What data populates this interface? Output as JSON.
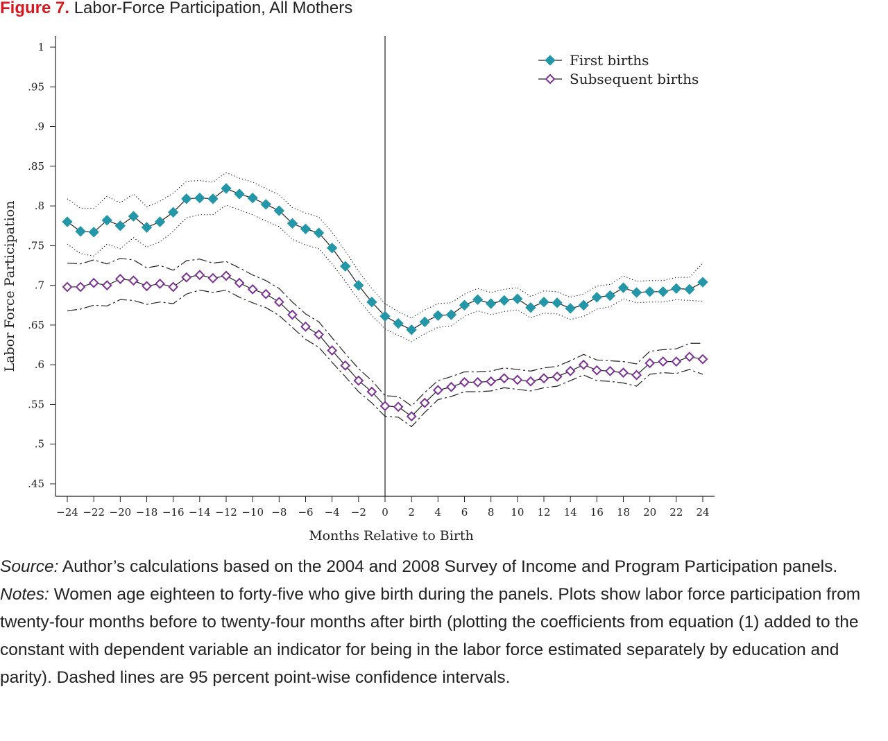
{
  "figure": {
    "label": "Figure 7.",
    "title": "Labor-Force Participation, All Mothers"
  },
  "chart_data": {
    "type": "line",
    "xlabel": "Months Relative to Birth",
    "ylabel": "Labor Force Participation",
    "xlim": [
      -24,
      24
    ],
    "ylim": [
      0.45,
      1
    ],
    "x_ticks": [
      -24,
      -22,
      -20,
      -18,
      -16,
      -14,
      -12,
      -10,
      -8,
      -6,
      -4,
      -2,
      0,
      2,
      4,
      6,
      8,
      10,
      12,
      14,
      16,
      18,
      20,
      22,
      24
    ],
    "x_tick_labels": [
      "−24",
      "−22",
      "−20",
      "−18",
      "−16",
      "−14",
      "−12",
      "−10",
      "−8",
      "−6",
      "−4",
      "−2",
      "0",
      "2",
      "4",
      "6",
      "8",
      "10",
      "12",
      "14",
      "16",
      "18",
      "20",
      "22",
      "24"
    ],
    "y_ticks": [
      0.45,
      0.5,
      0.55,
      0.6,
      0.65,
      0.7,
      0.75,
      0.8,
      0.85,
      0.9,
      0.95,
      1
    ],
    "y_tick_labels": [
      ".45",
      ".5",
      ".55",
      ".6",
      ".65",
      ".7",
      ".75",
      ".8",
      ".85",
      ".9",
      ".95",
      "1"
    ],
    "reference_line_x": 0,
    "grid": false,
    "legend_position": "top-right",
    "x": [
      -24,
      -23,
      -22,
      -21,
      -20,
      -19,
      -18,
      -17,
      -16,
      -15,
      -14,
      -13,
      -12,
      -11,
      -10,
      -9,
      -8,
      -7,
      -6,
      -5,
      -4,
      -3,
      -2,
      -1,
      0,
      1,
      2,
      3,
      4,
      5,
      6,
      7,
      8,
      9,
      10,
      11,
      12,
      13,
      14,
      15,
      16,
      17,
      18,
      19,
      20,
      21,
      22,
      23,
      24
    ],
    "series": [
      {
        "name": "First births",
        "color": "#2397a8",
        "marker": "filled-diamond",
        "values": [
          0.78,
          0.768,
          0.767,
          0.782,
          0.775,
          0.787,
          0.773,
          0.78,
          0.792,
          0.809,
          0.81,
          0.809,
          0.822,
          0.815,
          0.81,
          0.802,
          0.794,
          0.778,
          0.771,
          0.766,
          0.747,
          0.724,
          0.7,
          0.679,
          0.661,
          0.652,
          0.644,
          0.654,
          0.662,
          0.663,
          0.675,
          0.682,
          0.677,
          0.681,
          0.683,
          0.672,
          0.679,
          0.678,
          0.671,
          0.675,
          0.685,
          0.687,
          0.697,
          0.691,
          0.692,
          0.692,
          0.696,
          0.695,
          0.704
        ],
        "ci_lower": [
          0.752,
          0.74,
          0.737,
          0.752,
          0.746,
          0.76,
          0.748,
          0.755,
          0.768,
          0.785,
          0.789,
          0.789,
          0.801,
          0.795,
          0.789,
          0.781,
          0.774,
          0.758,
          0.751,
          0.746,
          0.727,
          0.705,
          0.682,
          0.662,
          0.645,
          0.637,
          0.629,
          0.639,
          0.647,
          0.649,
          0.661,
          0.668,
          0.663,
          0.667,
          0.669,
          0.659,
          0.665,
          0.664,
          0.657,
          0.661,
          0.67,
          0.673,
          0.683,
          0.678,
          0.679,
          0.679,
          0.682,
          0.681,
          0.68
        ],
        "ci_upper": [
          0.809,
          0.797,
          0.797,
          0.812,
          0.804,
          0.815,
          0.799,
          0.806,
          0.816,
          0.831,
          0.832,
          0.83,
          0.842,
          0.835,
          0.83,
          0.822,
          0.814,
          0.798,
          0.791,
          0.786,
          0.767,
          0.743,
          0.718,
          0.696,
          0.677,
          0.667,
          0.659,
          0.669,
          0.677,
          0.678,
          0.689,
          0.696,
          0.691,
          0.695,
          0.697,
          0.686,
          0.693,
          0.692,
          0.685,
          0.689,
          0.699,
          0.701,
          0.712,
          0.705,
          0.706,
          0.706,
          0.71,
          0.71,
          0.728
        ]
      },
      {
        "name": "Subsequent births",
        "color": "#7b3294",
        "marker": "hollow-diamond",
        "values": [
          0.698,
          0.698,
          0.703,
          0.7,
          0.708,
          0.706,
          0.699,
          0.702,
          0.698,
          0.71,
          0.713,
          0.709,
          0.712,
          0.703,
          0.695,
          0.689,
          0.679,
          0.663,
          0.648,
          0.638,
          0.618,
          0.599,
          0.58,
          0.566,
          0.548,
          0.547,
          0.535,
          0.552,
          0.568,
          0.572,
          0.578,
          0.578,
          0.579,
          0.583,
          0.581,
          0.579,
          0.583,
          0.585,
          0.592,
          0.6,
          0.593,
          0.592,
          0.59,
          0.587,
          0.602,
          0.604,
          0.604,
          0.61,
          0.607
        ],
        "ci_lower": [
          0.668,
          0.67,
          0.675,
          0.674,
          0.682,
          0.681,
          0.676,
          0.679,
          0.677,
          0.689,
          0.694,
          0.691,
          0.694,
          0.685,
          0.678,
          0.672,
          0.662,
          0.647,
          0.632,
          0.622,
          0.603,
          0.585,
          0.566,
          0.552,
          0.535,
          0.534,
          0.522,
          0.54,
          0.556,
          0.56,
          0.566,
          0.566,
          0.567,
          0.571,
          0.569,
          0.567,
          0.571,
          0.573,
          0.58,
          0.587,
          0.58,
          0.579,
          0.577,
          0.573,
          0.588,
          0.59,
          0.589,
          0.594,
          0.588
        ],
        "ci_upper": [
          0.728,
          0.727,
          0.732,
          0.727,
          0.734,
          0.732,
          0.722,
          0.725,
          0.719,
          0.731,
          0.733,
          0.728,
          0.73,
          0.722,
          0.713,
          0.706,
          0.696,
          0.679,
          0.664,
          0.654,
          0.634,
          0.614,
          0.595,
          0.58,
          0.561,
          0.56,
          0.548,
          0.565,
          0.58,
          0.585,
          0.591,
          0.591,
          0.592,
          0.596,
          0.594,
          0.592,
          0.596,
          0.598,
          0.605,
          0.613,
          0.606,
          0.605,
          0.604,
          0.601,
          0.617,
          0.619,
          0.62,
          0.627,
          0.627
        ]
      }
    ]
  },
  "source": {
    "lead": "Source:",
    "text": " Author’s calculations based on the 2004 and 2008 Survey of Income and Program Participation panels."
  },
  "notes": {
    "lead": "Notes:",
    "text": " Women age eighteen to forty-five who give birth during the panels. Plots show labor force participation from twenty-four months before to twenty-four months after birth (plotting the coefficients from equation (1) added to the constant with dependent variable an indicator for being in the labor force estimated separately by education and parity). Dashed lines are 95 percent point-wise confidence intervals."
  }
}
